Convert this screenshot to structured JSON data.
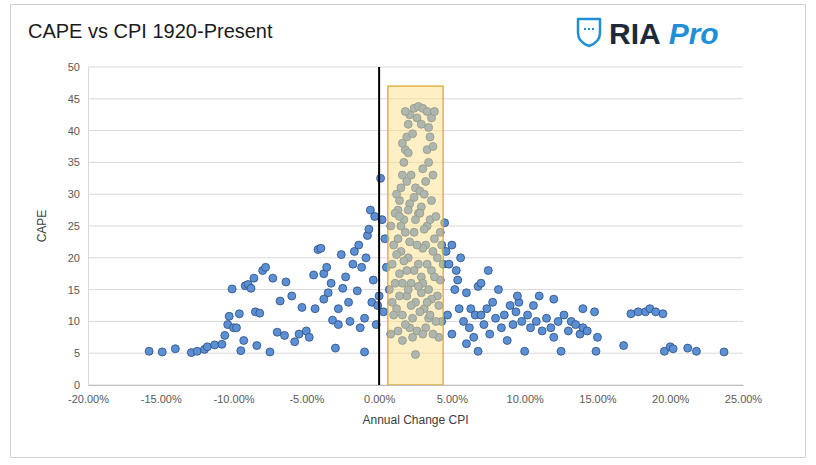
{
  "chart_data": {
    "type": "scatter",
    "title": "CAPE vs CPI 1920-Present",
    "logo": {
      "text": "RIA",
      "emphasis": "Pro"
    },
    "x_label": "Annual Change CPI",
    "y_label": "CAPE",
    "color": "#5b8fd6",
    "marker": "circle",
    "grid": true,
    "xlim": [
      -20,
      25
    ],
    "ylim": [
      0,
      50
    ],
    "xticks": [
      {
        "value": -20,
        "label": "-20.00%"
      },
      {
        "value": -15,
        "label": "-15.00%"
      },
      {
        "value": -10,
        "label": "-10.00%"
      },
      {
        "value": -5,
        "label": "-5.00%"
      },
      {
        "value": 0,
        "label": "0.00%"
      },
      {
        "value": 5,
        "label": "5.00%"
      },
      {
        "value": 10,
        "label": "10.00%"
      },
      {
        "value": 15,
        "label": "15.00%"
      },
      {
        "value": 20,
        "label": "20.00%"
      },
      {
        "value": 25,
        "label": "25.00%"
      }
    ],
    "yticks": [
      0,
      5,
      10,
      15,
      20,
      25,
      30,
      35,
      40,
      45,
      50
    ],
    "vline": 0,
    "highlight": {
      "x": [
        0.6,
        4.4
      ],
      "y": [
        0,
        47
      ]
    },
    "x": [
      -15.8,
      -14.9,
      -14.0,
      -12.9,
      -12.5,
      -12.0,
      -11.8,
      -11.3,
      -10.8,
      -10.6,
      -10.4,
      -10.3,
      -10.1,
      -10.0,
      -9.8,
      -9.6,
      -9.5,
      -9.3,
      -9.2,
      -9.0,
      -8.8,
      -8.6,
      -8.5,
      -8.4,
      -8.2,
      -8.0,
      -7.8,
      -7.5,
      -7.3,
      -7.0,
      -6.8,
      -6.5,
      -6.4,
      -6.0,
      -5.8,
      -5.5,
      -5.3,
      -5.0,
      -4.8,
      -4.5,
      -4.4,
      -4.2,
      -4.0,
      -3.8,
      -3.6,
      -3.5,
      -3.3,
      -3.2,
      -3.0,
      -2.8,
      -2.6,
      -2.5,
      -2.3,
      -2.1,
      -2.0,
      -1.8,
      -1.7,
      -1.5,
      -1.4,
      -1.3,
      -1.2,
      -1.0,
      -0.9,
      -0.8,
      -0.7,
      -0.6,
      -0.5,
      -0.4,
      -0.3,
      -0.2,
      -0.1,
      0.1,
      0.0,
      0.2,
      0.3,
      0.4,
      0.5,
      -1.0,
      -2.8,
      -3.8,
      1.5,
      1.6,
      1.7,
      1.8,
      1.9,
      2.0,
      2.1,
      2.4,
      2.7,
      3.0,
      3.3,
      3.6,
      3.8,
      3.5,
      3.3,
      3.4,
      3.7,
      1.4,
      2.2,
      2.5,
      2.8,
      3.1,
      1.2,
      1.9,
      2.9,
      3.2,
      2.0,
      2.3,
      3.4,
      3.7,
      1.6,
      2.6,
      2.9,
      1.8,
      2.4,
      3.0,
      1.3,
      2.1,
      3.6,
      2.7,
      0.8,
      1.2,
      1.6,
      2.0,
      2.4,
      2.8,
      3.2,
      3.6,
      4.0,
      4.3,
      0.9,
      1.3,
      1.7,
      2.1,
      2.5,
      2.9,
      3.3,
      3.7,
      4.1,
      4.2,
      0.7,
      1.1,
      1.5,
      1.9,
      2.3,
      2.7,
      3.1,
      3.5,
      3.9,
      4.4,
      1.0,
      1.4,
      1.8,
      2.2,
      2.6,
      3.0,
      3.4,
      3.8,
      4.2,
      0.8,
      1.2,
      1.6,
      2.0,
      2.4,
      2.8,
      3.2,
      3.6,
      4.0,
      0.9,
      1.3,
      1.7,
      2.1,
      2.5,
      2.9,
      3.3,
      3.7,
      4.1,
      1.0,
      1.4,
      1.8,
      2.2,
      2.6,
      3.0,
      3.4,
      3.8,
      4.3,
      1.1,
      1.5,
      1.9,
      2.3,
      2.7,
      3.1,
      3.5,
      3.9,
      2.5,
      1.6,
      2.0,
      3.0,
      1.4,
      3.3,
      4.5,
      4.6,
      4.8,
      5.0,
      5.2,
      5.3,
      5.5,
      5.6,
      5.8,
      6.0,
      6.2,
      6.3,
      6.5,
      6.6,
      6.8,
      7.0,
      7.2,
      7.4,
      7.6,
      7.8,
      8.0,
      8.2,
      8.4,
      8.6,
      8.8,
      9.0,
      9.2,
      9.4,
      9.6,
      9.8,
      10.0,
      10.2,
      10.4,
      10.6,
      10.8,
      11.0,
      11.2,
      11.5,
      11.8,
      12.0,
      12.3,
      12.5,
      12.7,
      13.0,
      13.2,
      13.5,
      13.8,
      14.0,
      14.3,
      14.8,
      14.9,
      15.0,
      16.8,
      17.3,
      17.8,
      18.3,
      18.6,
      19.0,
      19.5,
      19.6,
      20.0,
      20.2,
      21.2,
      21.8,
      23.7,
      6.8,
      7.5,
      9.5,
      5.0,
      6.0,
      7.0,
      12.0,
      14.0,
      5.4,
      4.7
    ],
    "values": [
      5.3,
      5.2,
      5.7,
      5.1,
      5.3,
      5.6,
      6.0,
      6.3,
      6.4,
      7.8,
      9.5,
      10.8,
      15.1,
      9.0,
      9.0,
      11.2,
      5.4,
      7.0,
      15.6,
      15.8,
      15.2,
      16.8,
      11.5,
      6.2,
      11.3,
      18.0,
      18.5,
      5.2,
      16.8,
      8.3,
      13.2,
      7.8,
      16.2,
      14.0,
      6.8,
      8.0,
      12.2,
      8.5,
      7.5,
      17.3,
      12.0,
      21.3,
      21.5,
      17.5,
      18.5,
      14.5,
      16.0,
      10.2,
      5.8,
      9.5,
      20.5,
      15.2,
      17.0,
      13.0,
      10.0,
      19.0,
      21.0,
      14.8,
      22.0,
      9.0,
      18.5,
      10.5,
      20.0,
      23.5,
      24.5,
      27.5,
      13.0,
      16.5,
      26.5,
      9.5,
      12.5,
      32.5,
      14.0,
      26.0,
      11.5,
      23.0,
      18.5,
      5.2,
      12.0,
      13.5,
      31,
      33,
      35,
      37,
      39,
      41,
      42.5,
      43.5,
      43.8,
      43.5,
      43,
      42,
      43,
      39,
      37,
      35,
      33,
      29,
      33,
      31,
      30.5,
      30,
      30,
      32,
      28,
      32,
      36.5,
      39.5,
      40.5,
      37.5,
      38,
      42,
      41,
      43,
      29.5,
      34,
      27.5,
      28.5,
      29,
      27,
      8,
      12,
      16,
      20,
      24,
      27,
      22,
      18,
      14,
      10,
      19,
      23,
      26,
      9,
      13,
      17,
      25,
      21,
      7.5,
      24,
      15,
      27,
      21,
      14,
      10.5,
      19,
      12,
      26,
      10,
      19,
      11,
      17.5,
      24,
      16,
      8.5,
      21.5,
      15,
      23,
      16.5,
      25,
      20.5,
      11,
      27.5,
      18,
      11.5,
      9,
      13.5,
      20,
      13,
      8.5,
      19.5,
      22.5,
      26,
      14.5,
      19,
      8,
      12.5,
      22,
      14,
      9.5,
      12.5,
      22,
      16,
      10.5,
      17,
      22,
      16,
      25,
      18,
      7.5,
      15.5,
      24.5,
      11,
      26.5,
      4.8,
      7,
      15,
      8,
      26.5,
      13,
      25.5,
      21,
      19,
      22,
      15,
      18,
      12,
      20,
      10,
      14.5,
      9,
      12,
      7.5,
      11,
      15.5,
      16,
      9.5,
      12,
      8,
      13,
      10.5,
      15,
      9,
      11,
      7,
      12.5,
      9.5,
      11.5,
      13,
      10,
      5.3,
      11,
      9,
      12.5,
      10,
      14,
      8.5,
      10.5,
      9,
      13.5,
      10,
      5.3,
      11,
      8.5,
      10,
      9.5,
      8,
      9,
      8.5,
      11.5,
      5.3,
      7.5,
      6.2,
      11.2,
      11.5,
      11.5,
      12,
      11.5,
      11.2,
      5.3,
      6.0,
      5.7,
      5.8,
      5.3,
      5.2,
      5.3,
      18,
      14,
      8,
      6.5,
      11,
      7.5,
      12,
      16.5,
      11
    ]
  }
}
